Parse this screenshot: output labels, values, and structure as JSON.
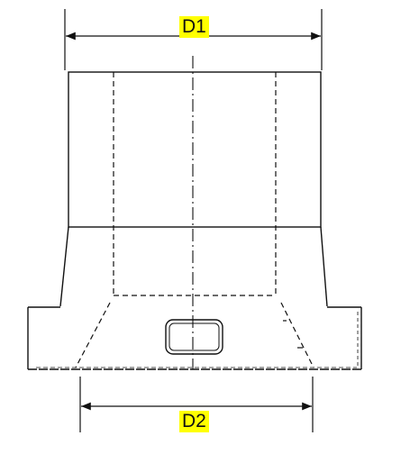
{
  "dimensions": {
    "d1": "D1",
    "d2": "D2"
  },
  "colors": {
    "line": "#111111",
    "highlight": "#ffff00",
    "background": "#ffffff"
  }
}
